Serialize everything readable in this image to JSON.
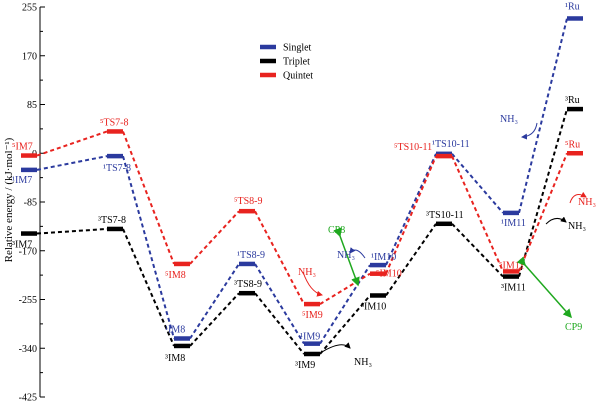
{
  "chart_data": {
    "type": "line",
    "ylabel": "Relative energy / (kJ·mol⁻¹)",
    "yticks": [
      255,
      170,
      85,
      0,
      -85,
      -170,
      -255,
      -340,
      -425
    ],
    "ylim": [
      -425,
      255
    ],
    "grid": false,
    "legend_position": "top-center",
    "legend": [
      {
        "label": "Singlet",
        "color": "#2b3a9e"
      },
      {
        "label": "Triplet",
        "color": "#000000"
      },
      {
        "label": "Quintet",
        "color": "#e8231f"
      }
    ],
    "series": [
      {
        "name": "Singlet",
        "color": "#2b3a9e",
        "points": [
          {
            "x": 0,
            "y": -29,
            "label": "¹IM7"
          },
          {
            "x": 1,
            "y": -5,
            "label": "¹TS7-8"
          },
          {
            "x": 2,
            "y": -323,
            "label": "¹IM8"
          },
          {
            "x": 3,
            "y": -193,
            "label": "¹TS8-9"
          },
          {
            "x": 4,
            "y": -332,
            "label": "¹IM9"
          },
          {
            "x": 5,
            "y": -195,
            "label": "¹IM10"
          },
          {
            "x": 6,
            "y": -1,
            "label": "¹TS10-11"
          },
          {
            "x": 7,
            "y": -104,
            "label": "¹IM11"
          },
          {
            "x": 8,
            "y": 235,
            "label": "¹Ru"
          }
        ]
      },
      {
        "name": "Triplet",
        "color": "#000000",
        "points": [
          {
            "x": 0,
            "y": -140,
            "label": "³IM7"
          },
          {
            "x": 1,
            "y": -132,
            "label": "³TS7-8"
          },
          {
            "x": 2,
            "y": -336,
            "label": "³IM8"
          },
          {
            "x": 3,
            "y": -244,
            "label": "³TS8-9"
          },
          {
            "x": 4,
            "y": -350,
            "label": "³IM9"
          },
          {
            "x": 5,
            "y": -248,
            "label": "³IM10"
          },
          {
            "x": 6,
            "y": -123,
            "label": "³TS10-11"
          },
          {
            "x": 7,
            "y": -215,
            "label": "³IM11"
          },
          {
            "x": 8,
            "y": 77,
            "label": "³Ru"
          }
        ]
      },
      {
        "name": "Quintet",
        "color": "#e8231f",
        "points": [
          {
            "x": 0,
            "y": -4,
            "label": "⁵IM7"
          },
          {
            "x": 1,
            "y": 38,
            "label": "⁵TS7-8"
          },
          {
            "x": 2,
            "y": -193,
            "label": "⁵IM8"
          },
          {
            "x": 3,
            "y": -101,
            "label": "⁵TS8-9"
          },
          {
            "x": 4,
            "y": -263,
            "label": "⁵IM9"
          },
          {
            "x": 5,
            "y": -210,
            "label": "⁵IM10"
          },
          {
            "x": 6,
            "y": -5,
            "label": "⁵TS10-11"
          },
          {
            "x": 7,
            "y": -206,
            "label": "⁵IM11"
          },
          {
            "x": 8,
            "y": 0,
            "label": "⁵Ru"
          }
        ]
      }
    ],
    "annotations": [
      {
        "text": "CP8",
        "color": "#1fa81f"
      },
      {
        "text": "CP9",
        "color": "#1fa81f"
      },
      {
        "text": "NH₃",
        "color": "#2b3a9e",
        "near": "¹IM10"
      },
      {
        "text": "NH₃",
        "color": "#e8231f",
        "near": "⁵IM9"
      },
      {
        "text": "NH₃",
        "color": "#000000",
        "near": "³IM9"
      },
      {
        "text": "NH₃",
        "color": "#2b3a9e",
        "near": "¹IM11"
      },
      {
        "text": "NH₃",
        "color": "#e8231f",
        "near": "⁵IM11"
      },
      {
        "text": "NH₃",
        "color": "#000000",
        "near": "³IM11"
      }
    ]
  }
}
